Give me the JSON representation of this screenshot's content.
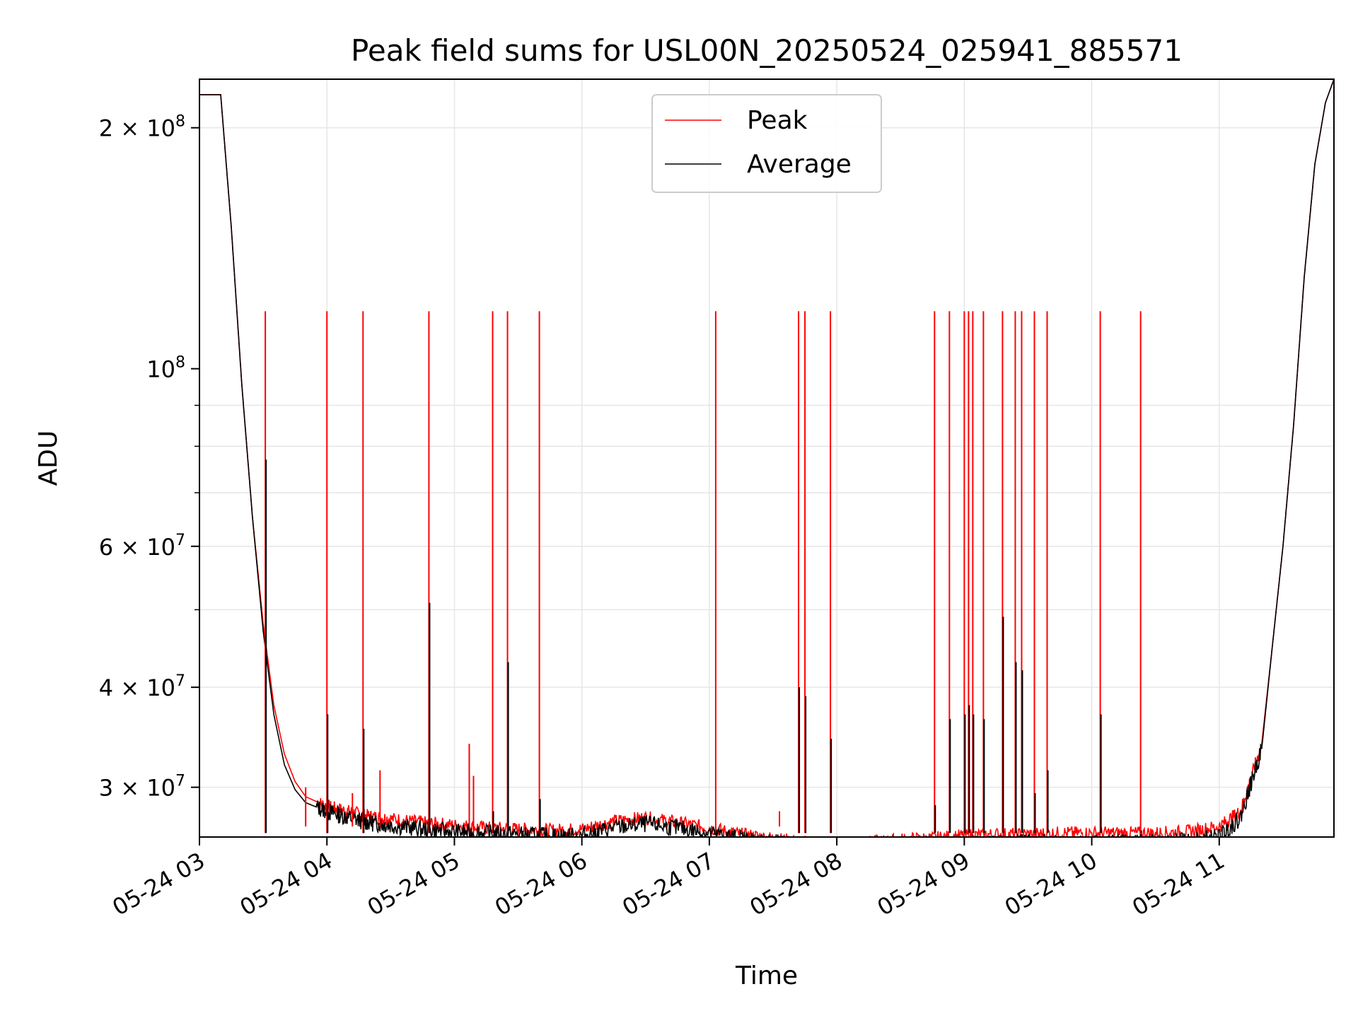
{
  "chart_data": {
    "type": "line",
    "title": "Peak field sums for USL00N_20250524_025941_885571",
    "xlabel": "Time",
    "ylabel": "ADU",
    "yscale": "log",
    "ylim": [
      26000000,
      230000000
    ],
    "xlim": [
      "05-24 03:00",
      "05-24 11:54"
    ],
    "grid": true,
    "legend_position": "upper-center",
    "x_ticks": [
      "05-24 03",
      "05-24 04",
      "05-24 05",
      "05-24 06",
      "05-24 07",
      "05-24 08",
      "05-24 09",
      "05-24 10",
      "05-24 11"
    ],
    "y_ticks": [
      {
        "label": "2 × 10^8",
        "value": 200000000
      },
      {
        "label": "10^8",
        "value": 100000000
      },
      {
        "label": "6 × 10^7",
        "value": 60000000
      },
      {
        "label": "4 × 10^7",
        "value": 40000000
      },
      {
        "label": "3 × 10^7",
        "value": 30000000
      }
    ],
    "series": [
      {
        "name": "Peak",
        "color": "#ff0000",
        "x": [
          "05-24 03:00",
          "05-24 03:05",
          "05-24 03:10",
          "05-24 03:15",
          "05-24 03:20",
          "05-24 03:25",
          "05-24 03:30",
          "05-24 03:35",
          "05-24 03:40",
          "05-24 03:45",
          "05-24 03:50",
          "05-24 04:00",
          "05-24 04:10",
          "05-24 04:20",
          "05-24 04:30",
          "05-24 04:45",
          "05-24 05:00",
          "05-24 05:15",
          "05-24 05:30",
          "05-24 05:45",
          "05-24 06:00",
          "05-24 06:15",
          "05-24 06:30",
          "05-24 06:45",
          "05-24 07:00",
          "05-24 07:15",
          "05-24 07:30",
          "05-24 07:45",
          "05-24 08:00",
          "05-24 08:15",
          "05-24 08:30",
          "05-24 08:45",
          "05-24 09:00",
          "05-24 09:15",
          "05-24 09:30",
          "05-24 09:45",
          "05-24 10:00",
          "05-24 10:15",
          "05-24 10:30",
          "05-24 10:45",
          "05-24 11:00",
          "05-24 11:10",
          "05-24 11:20",
          "05-24 11:25",
          "05-24 11:30",
          "05-24 11:35",
          "05-24 11:40",
          "05-24 11:45",
          "05-24 11:50",
          "05-24 11:54"
        ],
        "values": [
          220000000,
          220000000,
          220000000,
          150000000,
          95000000,
          65000000,
          48000000,
          38000000,
          33000000,
          30500000,
          29200000,
          28400000,
          28000000,
          27600000,
          27400000,
          27100000,
          26900000,
          26700000,
          26600000,
          26500000,
          26600000,
          27200000,
          27500000,
          27100000,
          26700000,
          26200000,
          25900000,
          25600000,
          25400000,
          25600000,
          25800000,
          25900000,
          26100000,
          26200000,
          26200000,
          26300000,
          26300000,
          26300000,
          26300000,
          26400000,
          26800000,
          28000000,
          34000000,
          45000000,
          60000000,
          85000000,
          130000000,
          180000000,
          215000000,
          230000000
        ]
      },
      {
        "name": "Average",
        "color": "#000000",
        "x": [
          "05-24 03:00",
          "05-24 03:05",
          "05-24 03:10",
          "05-24 03:15",
          "05-24 03:20",
          "05-24 03:25",
          "05-24 03:30",
          "05-24 03:35",
          "05-24 03:40",
          "05-24 03:45",
          "05-24 03:50",
          "05-24 04:00",
          "05-24 04:10",
          "05-24 04:20",
          "05-24 04:30",
          "05-24 04:45",
          "05-24 05:00",
          "05-24 05:15",
          "05-24 05:30",
          "05-24 05:45",
          "05-24 06:00",
          "05-24 06:15",
          "05-24 06:30",
          "05-24 06:45",
          "05-24 07:00",
          "05-24 07:15",
          "05-24 07:30",
          "05-24 07:45",
          "05-24 08:00",
          "05-24 08:15",
          "05-24 08:30",
          "05-24 08:45",
          "05-24 09:00",
          "05-24 09:15",
          "05-24 09:30",
          "05-24 09:45",
          "05-24 10:00",
          "05-24 10:15",
          "05-24 10:30",
          "05-24 10:45",
          "05-24 11:00",
          "05-24 11:10",
          "05-24 11:20",
          "05-24 11:25",
          "05-24 11:30",
          "05-24 11:35",
          "05-24 11:40",
          "05-24 11:45",
          "05-24 11:50",
          "05-24 11:54"
        ],
        "values": [
          220000000,
          220000000,
          220000000,
          150000000,
          95000000,
          65000000,
          47000000,
          37000000,
          32000000,
          29800000,
          28700000,
          28000000,
          27500000,
          27100000,
          26900000,
          26600000,
          26400000,
          26300000,
          26200000,
          26100000,
          26100000,
          26700000,
          27000000,
          26700000,
          26300000,
          25900000,
          25600000,
          25300000,
          25200000,
          25200000,
          25300000,
          25400000,
          25500000,
          25600000,
          25600000,
          25600000,
          25600000,
          25600000,
          25600000,
          25700000,
          26000000,
          27500000,
          33500000,
          45000000,
          60000000,
          85000000,
          130000000,
          180000000,
          215000000,
          230000000
        ]
      }
    ],
    "spikes": {
      "peak_top": 118000000,
      "times": [
        "05-24 03:31",
        "05-24 04:00",
        "05-24 04:17",
        "05-24 04:48",
        "05-24 05:18",
        "05-24 05:25",
        "05-24 05:40",
        "05-24 07:03",
        "05-24 07:42",
        "05-24 07:45",
        "05-24 07:57",
        "05-24 08:46",
        "05-24 08:53",
        "05-24 09:00",
        "05-24 09:02",
        "05-24 09:04",
        "05-24 09:09",
        "05-24 09:18",
        "05-24 09:24",
        "05-24 09:27",
        "05-24 09:33",
        "05-24 09:39",
        "05-24 10:04",
        "05-24 10:23"
      ],
      "average_tops": [
        77000000,
        37000000,
        35500000,
        51000000,
        28000000,
        43000000,
        29000000,
        26500000,
        40000000,
        39000000,
        34500000,
        28500000,
        36500000,
        37000000,
        38000000,
        37000000,
        36500000,
        49000000,
        43000000,
        42000000,
        29500000,
        31500000,
        37000000,
        26500000
      ]
    },
    "small_peak_spikes": {
      "times": [
        "05-24 03:50",
        "05-24 04:12",
        "05-24 04:25",
        "05-24 05:07",
        "05-24 05:09",
        "05-24 07:33"
      ],
      "values": [
        30000000,
        29500000,
        31500000,
        34000000,
        31000000,
        28000000
      ]
    }
  }
}
